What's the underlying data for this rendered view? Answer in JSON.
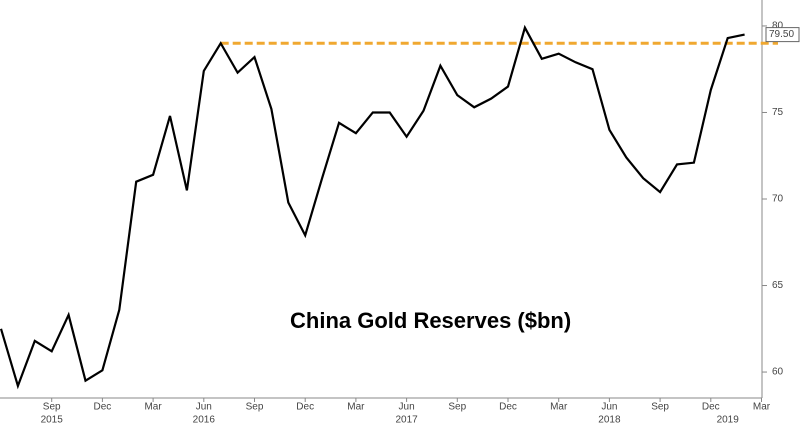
{
  "chart_data": {
    "type": "line",
    "annotation": "China Gold Reserves ($bn)",
    "x": [
      "2015-06",
      "2015-07",
      "2015-08",
      "2015-09",
      "2015-10",
      "2015-11",
      "2015-12",
      "2016-01",
      "2016-02",
      "2016-03",
      "2016-04",
      "2016-05",
      "2016-06",
      "2016-07",
      "2016-08",
      "2016-09",
      "2016-10",
      "2016-11",
      "2016-12",
      "2017-01",
      "2017-02",
      "2017-03",
      "2017-04",
      "2017-05",
      "2017-06",
      "2017-07",
      "2017-08",
      "2017-09",
      "2017-10",
      "2017-11",
      "2017-12",
      "2018-01",
      "2018-02",
      "2018-03",
      "2018-04",
      "2018-05",
      "2018-06",
      "2018-07",
      "2018-08",
      "2018-09",
      "2018-10",
      "2018-11",
      "2018-12",
      "2019-01",
      "2019-02"
    ],
    "series": [
      {
        "color": "#000000",
        "values": [
          62.5,
          59.2,
          61.8,
          61.2,
          63.3,
          59.5,
          60.1,
          63.6,
          71.0,
          71.4,
          74.8,
          70.5,
          77.4,
          79.0,
          77.3,
          78.2,
          75.2,
          69.8,
          67.9,
          71.2,
          74.4,
          73.8,
          75.0,
          75.0,
          73.6,
          75.1,
          77.7,
          76.0,
          75.3,
          75.8,
          76.5,
          79.9,
          78.1,
          78.4,
          77.9,
          77.5,
          74.0,
          72.4,
          71.2,
          70.4,
          72.0,
          72.1,
          76.3,
          79.3,
          79.5
        ]
      }
    ],
    "last_value_label": {
      "value": 79.5,
      "label": "79.50"
    },
    "reference_line": {
      "value": 79.0,
      "start": "2016-07",
      "color": "#f0a830"
    },
    "ylim": [
      58.5,
      81.5
    ],
    "yticks": [
      60,
      65,
      70,
      75,
      80
    ],
    "xticks": [
      {
        "value": "2015-09",
        "label": "Sep"
      },
      {
        "value": "2015-12",
        "label": "Dec"
      },
      {
        "value": "2016-03",
        "label": "Mar"
      },
      {
        "value": "2016-06",
        "label": "Jun"
      },
      {
        "value": "2016-09",
        "label": "Sep"
      },
      {
        "value": "2016-12",
        "label": "Dec"
      },
      {
        "value": "2017-03",
        "label": "Mar"
      },
      {
        "value": "2017-06",
        "label": "Jun"
      },
      {
        "value": "2017-09",
        "label": "Sep"
      },
      {
        "value": "2017-12",
        "label": "Dec"
      },
      {
        "value": "2018-03",
        "label": "Mar"
      },
      {
        "value": "2018-06",
        "label": "Jun"
      },
      {
        "value": "2018-09",
        "label": "Sep"
      },
      {
        "value": "2018-12",
        "label": "Dec"
      },
      {
        "value": "2019-03",
        "label": "Mar"
      }
    ],
    "year_labels": [
      {
        "value": "2015-09",
        "label": "2015"
      },
      {
        "value": "2016-06",
        "label": "2016"
      },
      {
        "value": "2017-06",
        "label": "2017"
      },
      {
        "value": "2018-06",
        "label": "2018"
      },
      {
        "value": "2019-01",
        "label": "2019"
      }
    ]
  }
}
